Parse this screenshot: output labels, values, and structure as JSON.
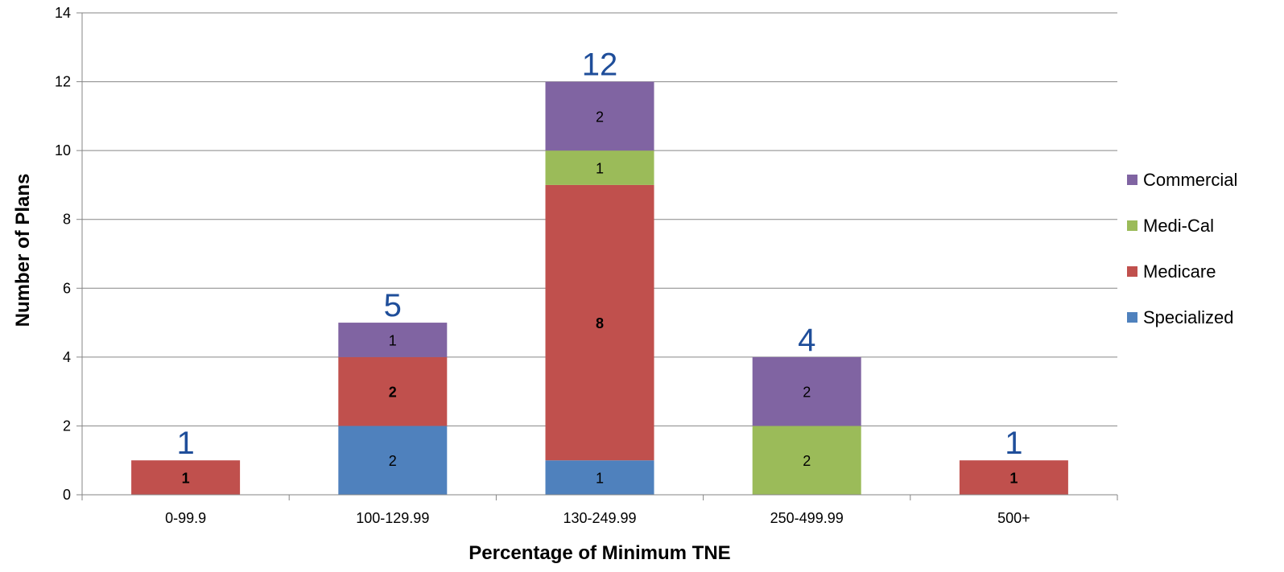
{
  "chart_data": {
    "type": "bar",
    "stacked": true,
    "title": "",
    "xlabel": "Percentage of Minimum TNE",
    "ylabel": "Number of Plans",
    "ylim": [
      0,
      14
    ],
    "yticks": [
      0,
      2,
      4,
      6,
      8,
      10,
      12,
      14
    ],
    "grid": true,
    "legend_position": "right",
    "categories": [
      "0-99.9",
      "100-129.99",
      "130-249.99",
      "250-499.99",
      "500+"
    ],
    "series": [
      {
        "name": "Specialized",
        "color": "#4f81bd",
        "values": [
          0,
          2,
          1,
          0,
          0
        ]
      },
      {
        "name": "Medicare",
        "color": "#c0504d",
        "values": [
          1,
          2,
          8,
          0,
          1
        ]
      },
      {
        "name": "Medi-Cal",
        "color": "#9bbb59",
        "values": [
          0,
          0,
          1,
          2,
          0
        ]
      },
      {
        "name": "Commercial",
        "color": "#8064a2",
        "values": [
          0,
          1,
          2,
          2,
          0
        ]
      }
    ],
    "totals": [
      1,
      5,
      12,
      4,
      1
    ],
    "bold_series": [
      "Medicare"
    ]
  }
}
